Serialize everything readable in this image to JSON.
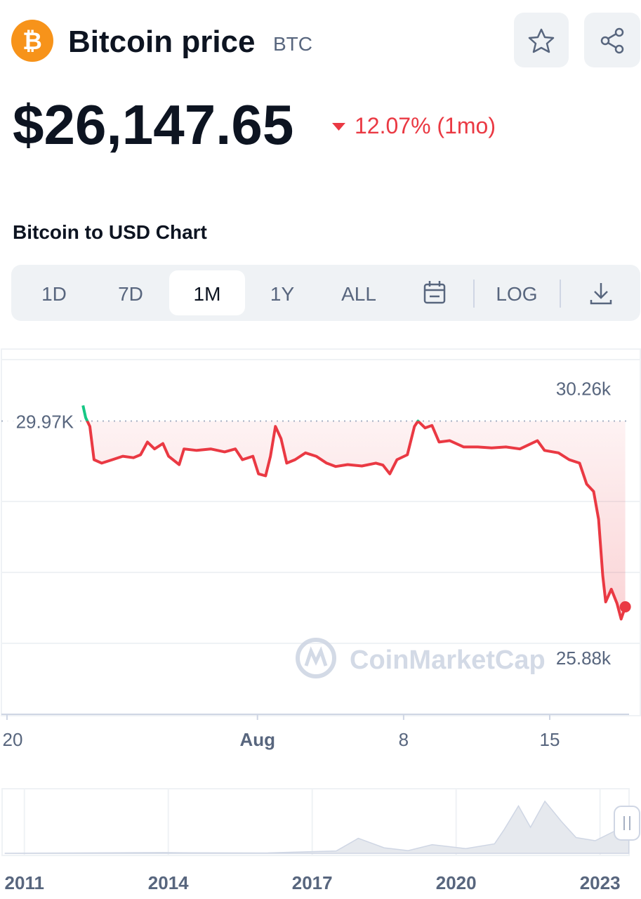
{
  "header": {
    "icon": "₿",
    "title": "Bitcoin price",
    "symbol": "BTC",
    "price": "$26,147.65",
    "change": "12.07% (1mo)"
  },
  "section_title": "Bitcoin to USD Chart",
  "tabs": [
    "1D",
    "7D",
    "1M",
    "1Y",
    "ALL"
  ],
  "log_tab": "LOG",
  "selected_tab": 2,
  "watermark": "CoinMarketCap",
  "chart_data": {
    "type": "line",
    "color": "#ea3943",
    "up_color": "#16c784",
    "x": [
      3.64,
      3.77,
      3.97,
      4.17,
      4.54,
      5.05,
      5.55,
      6.06,
      6.4,
      6.73,
      7.07,
      7.47,
      7.74,
      8.25,
      8.48,
      9.09,
      9.76,
      10.43,
      10.94,
      11.28,
      11.78,
      12.05,
      12.39,
      12.62,
      12.86,
      13.13,
      13.4,
      13.8,
      14.3,
      14.81,
      15.31,
      15.75,
      16.32,
      17,
      17.67,
      18.01,
      18.34,
      18.68,
      19.18,
      19.52,
      19.69,
      20.03,
      20.36,
      20.7,
      21.21,
      21.88,
      22.55,
      23.22,
      23.9,
      24.57,
      25.41,
      25.75,
      26.42,
      26.93,
      27.43,
      27.77,
      28.1,
      28.34,
      28.54,
      28.68,
      28.95,
      29.22,
      29.42,
      29.62
    ],
    "values": [
      30.29,
      30.04,
      29.86,
      29.18,
      29.11,
      29.18,
      29.25,
      29.22,
      29.28,
      29.54,
      29.4,
      29.51,
      29.25,
      29.08,
      29.4,
      29.37,
      29.4,
      29.34,
      29.4,
      29.18,
      29.25,
      28.89,
      28.85,
      29.25,
      29.86,
      29.61,
      29.11,
      29.18,
      29.32,
      29.25,
      29.11,
      29.04,
      29.08,
      29.05,
      29.11,
      29.07,
      28.89,
      29.18,
      29.28,
      29.86,
      29.97,
      29.83,
      29.88,
      29.54,
      29.57,
      29.44,
      29.44,
      29.42,
      29.44,
      29.4,
      29.57,
      29.37,
      29.32,
      29.18,
      29.11,
      28.68,
      28.53,
      27.96,
      26.81,
      26.27,
      26.53,
      26.24,
      25.92,
      26.17
    ],
    "xlim": [
      -0.3,
      29.8
    ],
    "ylim": [
      24,
      31.4
    ],
    "xticks": [
      {
        "value": 0,
        "label": "20"
      },
      {
        "value": 12,
        "label": "Aug"
      },
      {
        "value": 19,
        "label": "8"
      },
      {
        "value": 26,
        "label": "15"
      }
    ],
    "reference": {
      "value": 29.97,
      "label": "29.97K"
    },
    "high": {
      "value": 30.26,
      "label": "30.26k"
    },
    "low": {
      "value": 25.88,
      "label": "25.88k"
    },
    "navigator": {
      "type": "area",
      "x": [
        2010.6,
        2011,
        2013.9,
        2014.5,
        2016,
        2017.5,
        2017.96,
        2018.5,
        2019,
        2019.5,
        2020.2,
        2020.8,
        2021,
        2021.3,
        2021.55,
        2021.85,
        2022.2,
        2022.5,
        2022.9,
        2023.3,
        2023.6
      ],
      "values": [
        0.1,
        0.3,
        1,
        0.6,
        0.4,
        3,
        19,
        7,
        3.5,
        11,
        6,
        12,
        30,
        60,
        33,
        66,
        40,
        20,
        16,
        28,
        26
      ],
      "xlim": [
        2010.55,
        2023.62
      ],
      "ylim": [
        0,
        80
      ],
      "xticks": [
        2011,
        2014,
        2017,
        2020,
        2023
      ]
    }
  }
}
